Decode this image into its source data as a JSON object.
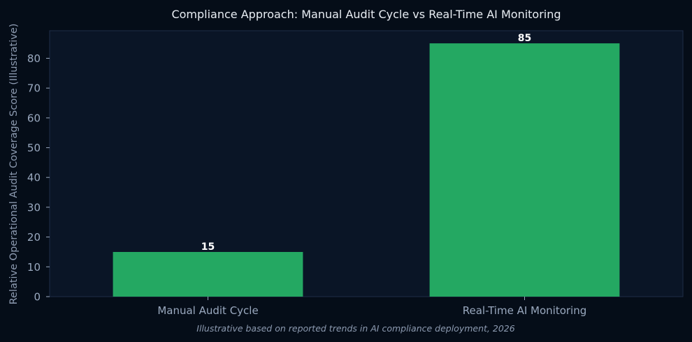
{
  "chart_data": {
    "type": "bar",
    "title": "Compliance Approach: Manual Audit Cycle vs Real-Time AI Monitoring",
    "xlabel": "",
    "ylabel": "Relative Operational Audit Coverage Score (Illustrative)",
    "categories": [
      "Manual Audit Cycle",
      "Real-Time AI Monitoring"
    ],
    "values": [
      15,
      85
    ],
    "value_labels": [
      "15",
      "85"
    ],
    "ylim": [
      0,
      89.25
    ],
    "yticks": [
      0,
      10,
      20,
      30,
      40,
      50,
      60,
      70,
      80
    ],
    "grid": false,
    "legend": "none",
    "caption": "Illustrative based on reported trends in AI compliance deployment, 2026"
  },
  "colors": {
    "background": "#050d18",
    "plot_background": "#0a1526",
    "plot_border": "#1e2d47",
    "bar": "#24a862",
    "axis": "#9aa9bf"
  }
}
